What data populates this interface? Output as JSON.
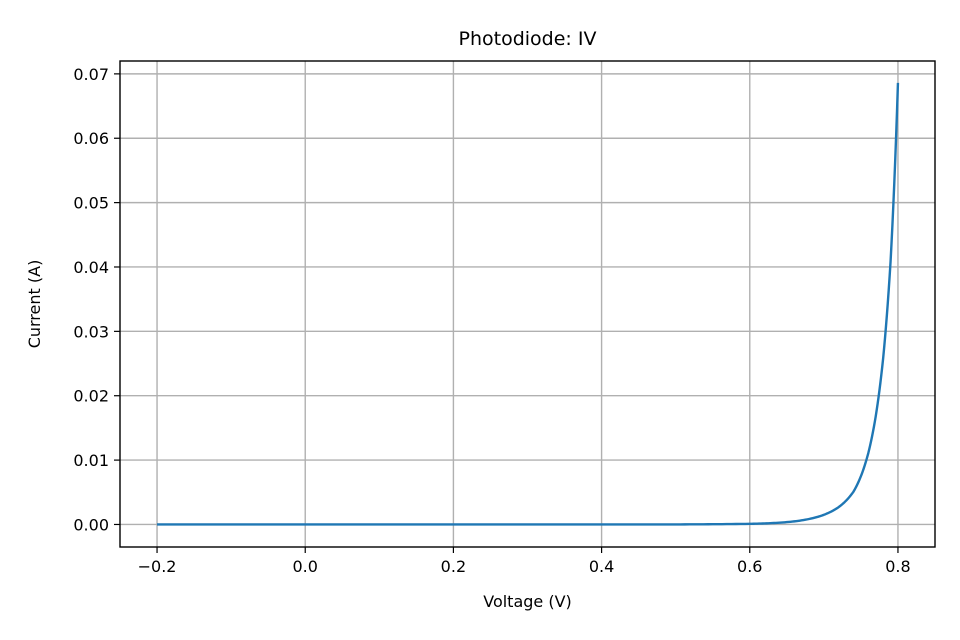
{
  "chart_data": {
    "type": "line",
    "title": "Photodiode: IV",
    "xlabel": "Voltage (V)",
    "ylabel": "Current (A)",
    "xlim": [
      -0.25,
      0.85
    ],
    "ylim": [
      -0.0035,
      0.072
    ],
    "xticks": [
      -0.2,
      0.0,
      0.2,
      0.4,
      0.6,
      0.8
    ],
    "xtick_labels": [
      "−0.2",
      "0.0",
      "0.2",
      "0.4",
      "0.6",
      "0.8"
    ],
    "yticks": [
      0.0,
      0.01,
      0.02,
      0.03,
      0.04,
      0.05,
      0.06,
      0.07
    ],
    "ytick_labels": [
      "0.00",
      "0.01",
      "0.02",
      "0.03",
      "0.04",
      "0.05",
      "0.06",
      "0.07"
    ],
    "grid": true,
    "series": [
      {
        "color": "#1f77b4",
        "x": [
          -0.2,
          0.0,
          0.2,
          0.4,
          0.5,
          0.55,
          0.6,
          0.62,
          0.64,
          0.66,
          0.68,
          0.7,
          0.72,
          0.73,
          0.74,
          0.75,
          0.76,
          0.77,
          0.78,
          0.79,
          0.8
        ],
        "y": [
          0.0,
          0.0,
          0.0,
          0.0,
          1e-05,
          4e-05,
          0.0001,
          0.00016,
          0.00028,
          0.00048,
          0.00085,
          0.0015,
          0.0027,
          0.0037,
          0.0051,
          0.0075,
          0.0111,
          0.0168,
          0.0258,
          0.0408,
          0.0686
        ]
      }
    ]
  }
}
